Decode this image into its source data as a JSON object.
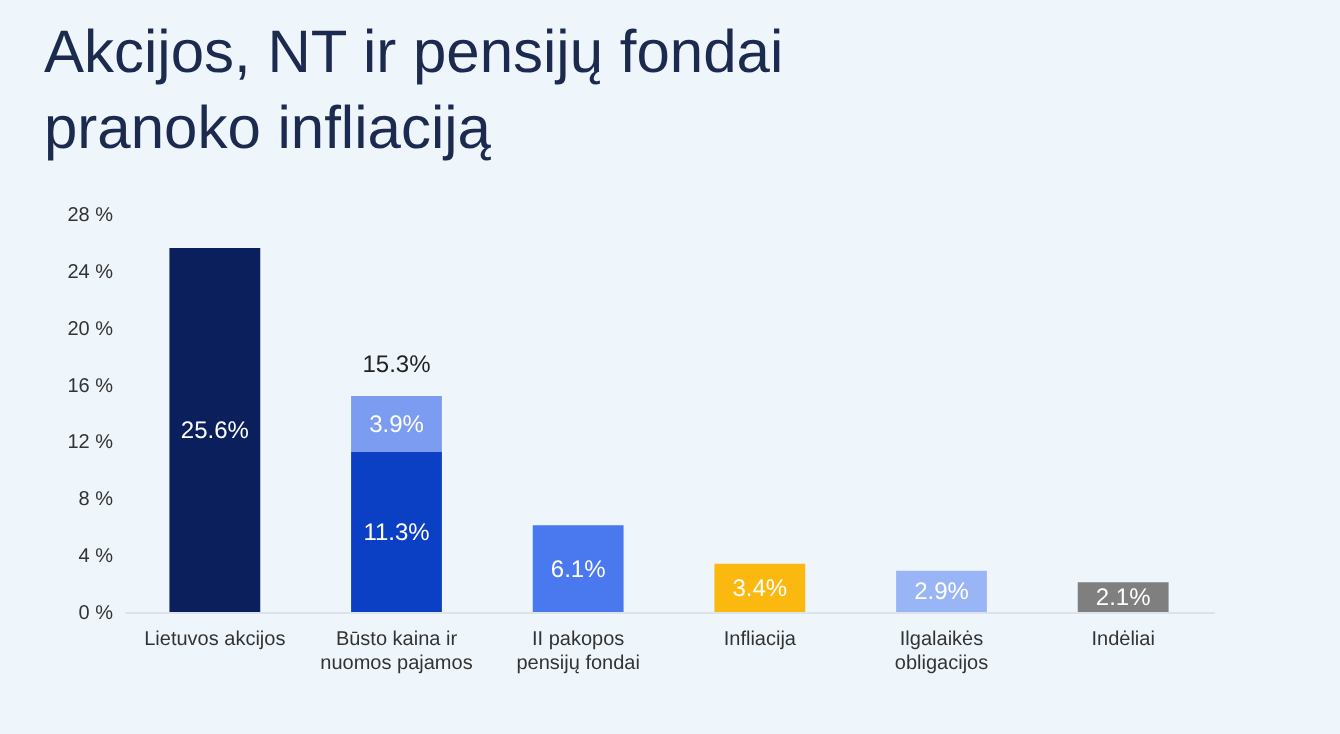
{
  "chart_data": {
    "type": "bar",
    "title": "Akcijos, NT ir pensijų fondai pranoko infliaciją",
    "categories": [
      "Lietuvos akcijos",
      "Būsto kaina ir nuomos pajamos",
      "II pakopos pensijų fondai",
      "Infliacija",
      "Ilgalaikės obligacijos",
      "Indėliai"
    ],
    "stacked": true,
    "series": [
      {
        "values": [
          25.6,
          11.3,
          6.1,
          3.4,
          2.9,
          2.1
        ],
        "colors": [
          "#0a1f5c",
          "#0b3fc4",
          "#4a78ee",
          "#fbb80f",
          "#99b5f5",
          "#7f7f7f"
        ],
        "value_labels": [
          "25.6%",
          "11.3%",
          "6.1%",
          "3.4%",
          "2.9%",
          "2.1%"
        ]
      },
      {
        "values": [
          null,
          3.9,
          null,
          null,
          null,
          null
        ],
        "color": "#7b9cf0",
        "value_labels": [
          null,
          "3.9%",
          null,
          null,
          null,
          null
        ]
      }
    ],
    "totals": [
      null,
      "15.3%",
      null,
      null,
      null,
      null
    ],
    "ylim": [
      0,
      28
    ],
    "yticks": [
      {
        "value": 0,
        "label": "0 %"
      },
      {
        "value": 4,
        "label": "4 %"
      },
      {
        "value": 8,
        "label": "8 %"
      },
      {
        "value": 12,
        "label": "12 %"
      },
      {
        "value": 16,
        "label": "16 %"
      },
      {
        "value": 20,
        "label": "20 %"
      },
      {
        "value": 24,
        "label": "24 %"
      },
      {
        "value": 28,
        "label": "28 %"
      }
    ],
    "grid": false
  }
}
